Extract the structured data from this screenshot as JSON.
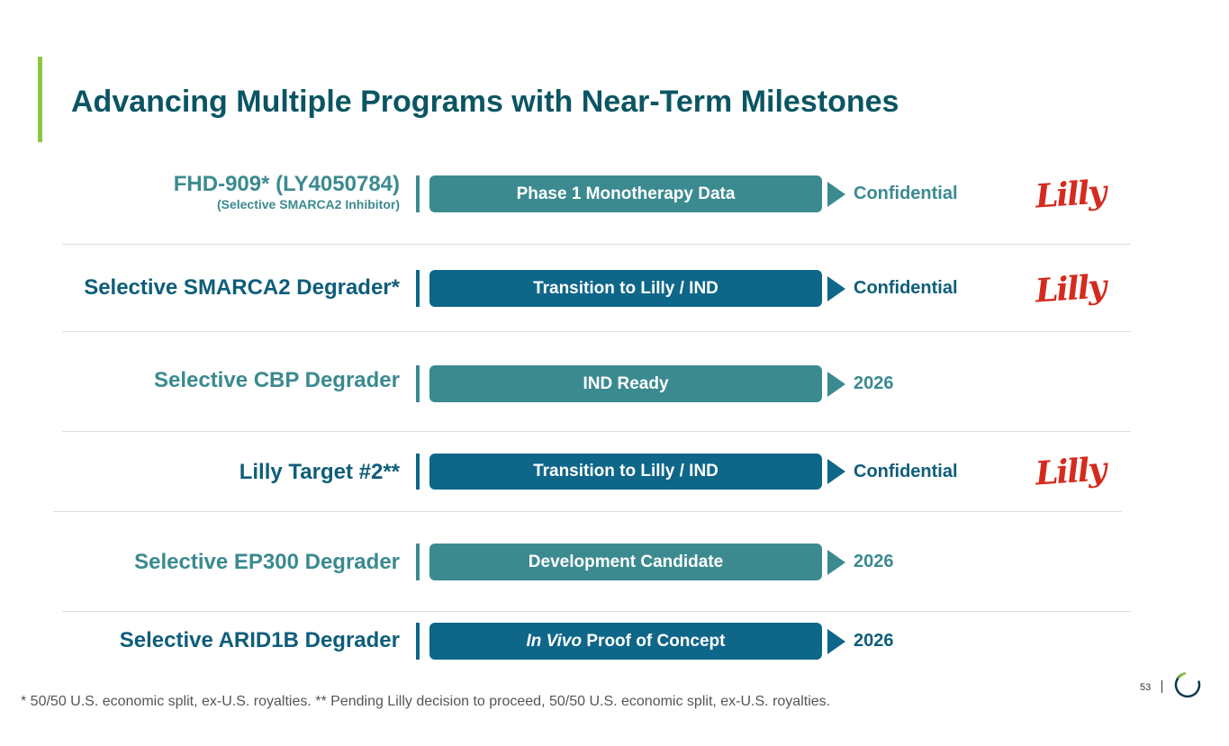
{
  "title": "Advancing Multiple Programs with Near-Term Milestones",
  "rows": [
    {
      "program": "FHD-909* (LY4050784)",
      "subtitle": "(Selective SMARCA2 Inhibitor)",
      "stage": "Phase 1 Monotherapy Data",
      "milestone": "Confidential",
      "partner_logo": "Lilly",
      "color": "#3b8a90"
    },
    {
      "program": "Selective SMARCA2 Degrader*",
      "stage": "Transition to Lilly / IND",
      "milestone": "Confidential",
      "partner_logo": "Lilly",
      "color": "#0e6689"
    },
    {
      "program": "Selective CBP Degrader",
      "stage": "IND Ready",
      "milestone": "2026",
      "color": "#3b8a90"
    },
    {
      "program": "Lilly Target #2**",
      "stage": "Transition to Lilly / IND",
      "milestone": "Confidential",
      "partner_logo": "Lilly",
      "color": "#0e6689"
    },
    {
      "program": "Selective EP300 Degrader",
      "stage": "Development Candidate",
      "milestone": "2026",
      "color": "#3b8a90"
    },
    {
      "program": "Selective ARID1B Degrader",
      "stage_italic": "In Vivo",
      "stage": "Proof of Concept",
      "milestone": "2026",
      "color": "#0e6689"
    }
  ],
  "footnote": "* 50/50 U.S. economic split, ex-U.S. royalties. ** Pending Lilly decision to proceed, 50/50 U.S. economic split, ex-U.S. royalties.",
  "page_number": "53",
  "colors": {
    "accent": "#8dc63f",
    "title": "#0b5563",
    "teal": "#3b8a90",
    "navy": "#0e6689",
    "lilly_red": "#d52b1e"
  }
}
